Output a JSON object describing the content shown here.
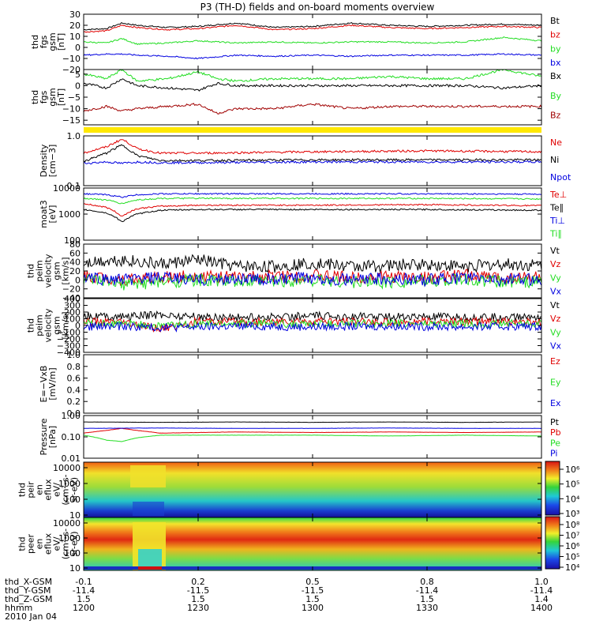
{
  "title": "P3 (TH-D) fields and on-board moments overview",
  "colors": {
    "black": "#000000",
    "red": "#e00000",
    "green": "#22dd22",
    "blue": "#0000e0",
    "darkred": "#a00000",
    "yellow": "#ffe800"
  },
  "colorbars": [
    {
      "labels": [
        "10⁶",
        "10⁵",
        "10⁴",
        "10³"
      ]
    },
    {
      "labels": [
        "10⁸",
        "10⁷",
        "10⁶",
        "10⁵",
        "10⁴"
      ]
    }
  ],
  "footer": {
    "rows": [
      {
        "label": "thd_X-GSM",
        "values": [
          "-0.1",
          "0.2",
          "0.5",
          "0.8",
          "1.0"
        ]
      },
      {
        "label": "thd_Y-GSM",
        "values": [
          "-11.4",
          "-11.5",
          "-11.5",
          "-11.4",
          "-11.4"
        ]
      },
      {
        "label": "thd_Z-GSM",
        "values": [
          "1.5",
          "1.5",
          "1.5",
          "1.5",
          "1.4"
        ]
      },
      {
        "label": "hhmm",
        "values": [
          "1200",
          "1230",
          "1300",
          "1330",
          "1400"
        ]
      }
    ],
    "date": "2010 Jan 04"
  },
  "chart_data": [
    {
      "type": "line",
      "ylabel_lines": [
        "thd",
        "fgs",
        "gsm",
        "[nT]"
      ],
      "yticks": [
        "30",
        "20",
        "10",
        "0",
        "−10",
        "−20"
      ],
      "ylim": [
        -20,
        30
      ],
      "legend": [
        {
          "name": "Bt",
          "color": "black"
        },
        {
          "name": "bz",
          "color": "red"
        },
        {
          "name": "by",
          "color": "green"
        },
        {
          "name": "bx",
          "color": "blue"
        }
      ],
      "series": [
        {
          "name": "Bt",
          "color": "black",
          "x": [
            0,
            6,
            10,
            14,
            22,
            30,
            40,
            50,
            60,
            70,
            80,
            90,
            100,
            110,
            120
          ],
          "y": [
            16,
            17,
            22,
            20,
            18,
            19,
            22,
            18,
            19,
            22,
            20,
            19,
            20,
            21,
            20
          ]
        },
        {
          "name": "bz",
          "color": "red",
          "x": [
            0,
            6,
            10,
            14,
            22,
            30,
            40,
            50,
            60,
            70,
            80,
            90,
            100,
            110,
            120
          ],
          "y": [
            14,
            15,
            20,
            18,
            16,
            17,
            20,
            16,
            17,
            20,
            18,
            17,
            18,
            19,
            18
          ]
        },
        {
          "name": "by",
          "color": "green",
          "x": [
            0,
            6,
            10,
            14,
            22,
            30,
            40,
            50,
            60,
            70,
            80,
            90,
            100,
            110,
            120
          ],
          "y": [
            5,
            4,
            8,
            3,
            4,
            6,
            4,
            5,
            4,
            5,
            5,
            4,
            5,
            9,
            6
          ]
        },
        {
          "name": "bx",
          "color": "blue",
          "x": [
            0,
            6,
            10,
            14,
            22,
            30,
            40,
            50,
            60,
            70,
            80,
            90,
            100,
            110,
            120
          ],
          "y": [
            -7,
            -6,
            -6,
            -7,
            -8,
            -10,
            -7,
            -8,
            -7,
            -8,
            -7,
            -7,
            -7,
            -6,
            -7
          ]
        }
      ]
    },
    {
      "type": "line",
      "ylabel_lines": [
        "thd",
        "fgs",
        "gsm",
        "[nT]"
      ],
      "yticks": [
        "5",
        "0",
        "−5",
        "−10",
        "−15"
      ],
      "ylim": [
        -17,
        7
      ],
      "legend": [
        {
          "name": "Bx",
          "color": "black"
        },
        {
          "name": "By",
          "color": "green"
        },
        {
          "name": "Bz",
          "color": "darkred"
        }
      ],
      "series": [
        {
          "name": "Bx",
          "color": "black",
          "x": [
            0,
            6,
            10,
            14,
            22,
            30,
            35,
            40,
            50,
            60,
            70,
            80,
            90,
            100,
            110,
            120
          ],
          "y": [
            1,
            -1,
            3,
            0,
            -1,
            -2,
            1,
            0,
            0,
            0,
            0,
            0,
            0,
            0,
            -1,
            0
          ]
        },
        {
          "name": "By",
          "color": "green",
          "x": [
            0,
            6,
            10,
            14,
            22,
            30,
            35,
            40,
            50,
            60,
            70,
            80,
            90,
            100,
            110,
            120
          ],
          "y": [
            5,
            3,
            7,
            2,
            3,
            6,
            3,
            2,
            3,
            3,
            3,
            4,
            3,
            3,
            7,
            4
          ]
        },
        {
          "name": "Bz",
          "color": "darkred",
          "x": [
            0,
            6,
            10,
            14,
            22,
            30,
            35,
            40,
            50,
            60,
            70,
            80,
            90,
            100,
            110,
            120
          ],
          "y": [
            -11,
            -9,
            -11,
            -10,
            -9,
            -8,
            -12,
            -10,
            -10,
            -8,
            -10,
            -9,
            -9,
            -9,
            -9,
            -9
          ]
        }
      ]
    },
    {
      "type": "line",
      "ylabel_lines": [
        "Density",
        "[cm−3]"
      ],
      "log": true,
      "yticks": [
        "1.0",
        "0.1"
      ],
      "ylim": [
        0.1,
        1.0
      ],
      "legend": [
        {
          "name": "Ne",
          "color": "red"
        },
        {
          "name": "Ni",
          "color": "black"
        },
        {
          "name": "Npot",
          "color": "blue"
        }
      ],
      "series": [
        {
          "name": "Ne",
          "color": "red",
          "x": [
            0,
            6,
            10,
            14,
            20,
            30,
            60,
            90,
            120
          ],
          "y": [
            0.45,
            0.6,
            0.85,
            0.55,
            0.45,
            0.45,
            0.48,
            0.5,
            0.48
          ]
        },
        {
          "name": "Ni",
          "color": "black",
          "x": [
            0,
            6,
            10,
            14,
            20,
            30,
            60,
            90,
            120
          ],
          "y": [
            0.3,
            0.45,
            0.65,
            0.4,
            0.32,
            0.32,
            0.33,
            0.33,
            0.33
          ]
        },
        {
          "name": "Npot",
          "color": "blue",
          "x": [
            0,
            6,
            10,
            14,
            20,
            30,
            60,
            90,
            120
          ],
          "y": [
            0.28,
            0.3,
            0.28,
            0.3,
            0.29,
            0.29,
            0.3,
            0.3,
            0.3
          ]
        }
      ]
    },
    {
      "type": "line",
      "ylabel_lines": [
        "moat3",
        "[eV]"
      ],
      "log": true,
      "yticks": [
        "10000",
        "1000",
        "100"
      ],
      "ylim": [
        100,
        10000
      ],
      "legend": [
        {
          "name": "Te⊥",
          "color": "red"
        },
        {
          "name": "Te∥",
          "color": "black"
        },
        {
          "name": "Ti⊥",
          "color": "blue"
        },
        {
          "name": "Ti∥",
          "color": "green"
        }
      ],
      "series": [
        {
          "name": "Te⊥",
          "color": "red",
          "x": [
            0,
            6,
            10,
            14,
            20,
            30,
            60,
            90,
            120
          ],
          "y": [
            2500,
            1800,
            800,
            1600,
            2000,
            2200,
            2200,
            2300,
            2100
          ]
        },
        {
          "name": "Te∥",
          "color": "black",
          "x": [
            0,
            6,
            10,
            14,
            20,
            30,
            60,
            90,
            120
          ],
          "y": [
            1500,
            1100,
            500,
            1000,
            1400,
            1500,
            1500,
            1500,
            1400
          ]
        },
        {
          "name": "Ti⊥",
          "color": "blue",
          "x": [
            0,
            6,
            10,
            14,
            20,
            30,
            60,
            90,
            120
          ],
          "y": [
            6000,
            5500,
            4500,
            5500,
            6000,
            6000,
            6000,
            6000,
            5800
          ]
        },
        {
          "name": "Ti∥",
          "color": "green",
          "x": [
            0,
            6,
            10,
            14,
            20,
            30,
            60,
            90,
            120
          ],
          "y": [
            4000,
            3500,
            2500,
            3500,
            4000,
            4000,
            4000,
            4000,
            3800
          ]
        }
      ]
    },
    {
      "type": "line",
      "ylabel_lines": [
        "thd",
        "peim",
        "velocity",
        "gsm",
        "[km/s]"
      ],
      "yticks": [
        "80",
        "60",
        "40",
        "20",
        "0",
        "−20",
        "−40"
      ],
      "ylim": [
        -40,
        80
      ],
      "legend": [
        {
          "name": "Vt",
          "color": "black"
        },
        {
          "name": "Vz",
          "color": "red"
        },
        {
          "name": "Vy",
          "color": "green"
        },
        {
          "name": "Vx",
          "color": "blue"
        }
      ],
      "series": [
        {
          "name": "Vt",
          "color": "black",
          "x": [
            0,
            10,
            20,
            30,
            40,
            50,
            60,
            70,
            80,
            90,
            100,
            110,
            120
          ],
          "y": [
            40,
            45,
            35,
            45,
            30,
            30,
            38,
            30,
            32,
            35,
            30,
            35,
            32
          ]
        },
        {
          "name": "Vz",
          "color": "red",
          "x": [
            0,
            10,
            20,
            30,
            40,
            50,
            60,
            70,
            80,
            90,
            100,
            110,
            120
          ],
          "y": [
            10,
            0,
            5,
            10,
            5,
            8,
            10,
            5,
            8,
            5,
            10,
            5,
            8
          ]
        },
        {
          "name": "Vy",
          "color": "green",
          "x": [
            0,
            10,
            20,
            30,
            40,
            50,
            60,
            70,
            80,
            90,
            100,
            110,
            120
          ],
          "y": [
            0,
            -10,
            -5,
            0,
            -5,
            -3,
            0,
            -5,
            -5,
            -3,
            0,
            -5,
            -3
          ]
        },
        {
          "name": "Vx",
          "color": "blue",
          "x": [
            0,
            10,
            20,
            30,
            40,
            50,
            60,
            70,
            80,
            90,
            100,
            110,
            120
          ],
          "y": [
            5,
            0,
            5,
            0,
            3,
            0,
            5,
            0,
            3,
            0,
            5,
            0,
            2
          ]
        }
      ]
    },
    {
      "type": "line",
      "ylabel_lines": [
        "thd",
        "peim",
        "velocity",
        "gsm",
        "[km/s]"
      ],
      "yticks": [
        "400",
        "300",
        "200",
        "100",
        "0",
        "−100",
        "−200",
        "−300",
        "−400"
      ],
      "ylim": [
        -400,
        400
      ],
      "legend": [
        {
          "name": "Vt",
          "color": "black"
        },
        {
          "name": "Vz",
          "color": "red"
        },
        {
          "name": "Vy",
          "color": "green"
        },
        {
          "name": "Vx",
          "color": "blue"
        }
      ],
      "series": [
        {
          "name": "Vt",
          "color": "black",
          "x": [
            0,
            10,
            20,
            30,
            40,
            60,
            80,
            100,
            120
          ],
          "y": [
            150,
            130,
            160,
            130,
            120,
            140,
            130,
            120,
            130
          ]
        },
        {
          "name": "Vz",
          "color": "red",
          "x": [
            0,
            10,
            20,
            30,
            40,
            60,
            80,
            100,
            120
          ],
          "y": [
            60,
            40,
            -50,
            60,
            50,
            60,
            50,
            60,
            50
          ]
        },
        {
          "name": "Vy",
          "color": "green",
          "x": [
            0,
            10,
            20,
            30,
            40,
            60,
            80,
            100,
            120
          ],
          "y": [
            30,
            20,
            0,
            20,
            30,
            20,
            30,
            20,
            30
          ]
        },
        {
          "name": "Vx",
          "color": "blue",
          "x": [
            0,
            10,
            20,
            30,
            40,
            60,
            80,
            100,
            120
          ],
          "y": [
            -20,
            -10,
            -30,
            -20,
            -10,
            -20,
            -10,
            -20,
            -10
          ]
        }
      ]
    },
    {
      "type": "line",
      "ylabel_lines": [
        "E=−VxB",
        "[mV/m]"
      ],
      "yticks": [
        "1.0",
        "0.8",
        "0.6",
        "0.4",
        "0.2",
        "0.0"
      ],
      "ylim": [
        0,
        1
      ],
      "legend": [
        {
          "name": "Ez",
          "color": "red"
        },
        {
          "name": "Ey",
          "color": "green"
        },
        {
          "name": "Ex",
          "color": "blue"
        }
      ],
      "series": []
    },
    {
      "type": "line",
      "ylabel_lines": [
        "Pressure",
        "[nPa]"
      ],
      "log": true,
      "yticks": [
        "1.00",
        "0.10",
        "0.01"
      ],
      "ylim": [
        0.01,
        1.0
      ],
      "legend": [
        {
          "name": "Pt",
          "color": "black"
        },
        {
          "name": "Pb",
          "color": "red"
        },
        {
          "name": "Pe",
          "color": "green"
        },
        {
          "name": "Pi",
          "color": "blue"
        }
      ],
      "series": [
        {
          "name": "Pt",
          "color": "black",
          "x": [
            0,
            20,
            40,
            60,
            80,
            100,
            120
          ],
          "y": [
            0.5,
            0.48,
            0.5,
            0.48,
            0.5,
            0.48,
            0.5
          ]
        },
        {
          "name": "Pb",
          "color": "red",
          "x": [
            0,
            6,
            10,
            14,
            20,
            40,
            60,
            80,
            100,
            120
          ],
          "y": [
            0.15,
            0.2,
            0.25,
            0.2,
            0.15,
            0.17,
            0.16,
            0.17,
            0.16,
            0.17
          ]
        },
        {
          "name": "Pe",
          "color": "green",
          "x": [
            0,
            6,
            10,
            14,
            20,
            40,
            60,
            80,
            100,
            120
          ],
          "y": [
            0.12,
            0.07,
            0.06,
            0.09,
            0.12,
            0.12,
            0.12,
            0.11,
            0.12,
            0.11
          ]
        },
        {
          "name": "Pi",
          "color": "blue",
          "x": [
            0,
            20,
            40,
            60,
            80,
            100,
            120
          ],
          "y": [
            0.25,
            0.26,
            0.25,
            0.25,
            0.26,
            0.25,
            0.25
          ]
        }
      ]
    },
    {
      "type": "heatmap",
      "ylabel_lines": [
        "thd",
        "peir",
        "en",
        "eflux",
        "eV/",
        "(cm²-s-",
        "sr-eV)"
      ],
      "yticks": [
        "10000",
        "1000",
        "100",
        "10"
      ]
    },
    {
      "type": "heatmap",
      "ylabel_lines": [
        "thd",
        "peer",
        "en",
        "eflux",
        "eV/",
        "(cm²-s-",
        "sr-eV)"
      ],
      "yticks": [
        "10000",
        "1000",
        "100",
        "10"
      ]
    }
  ]
}
